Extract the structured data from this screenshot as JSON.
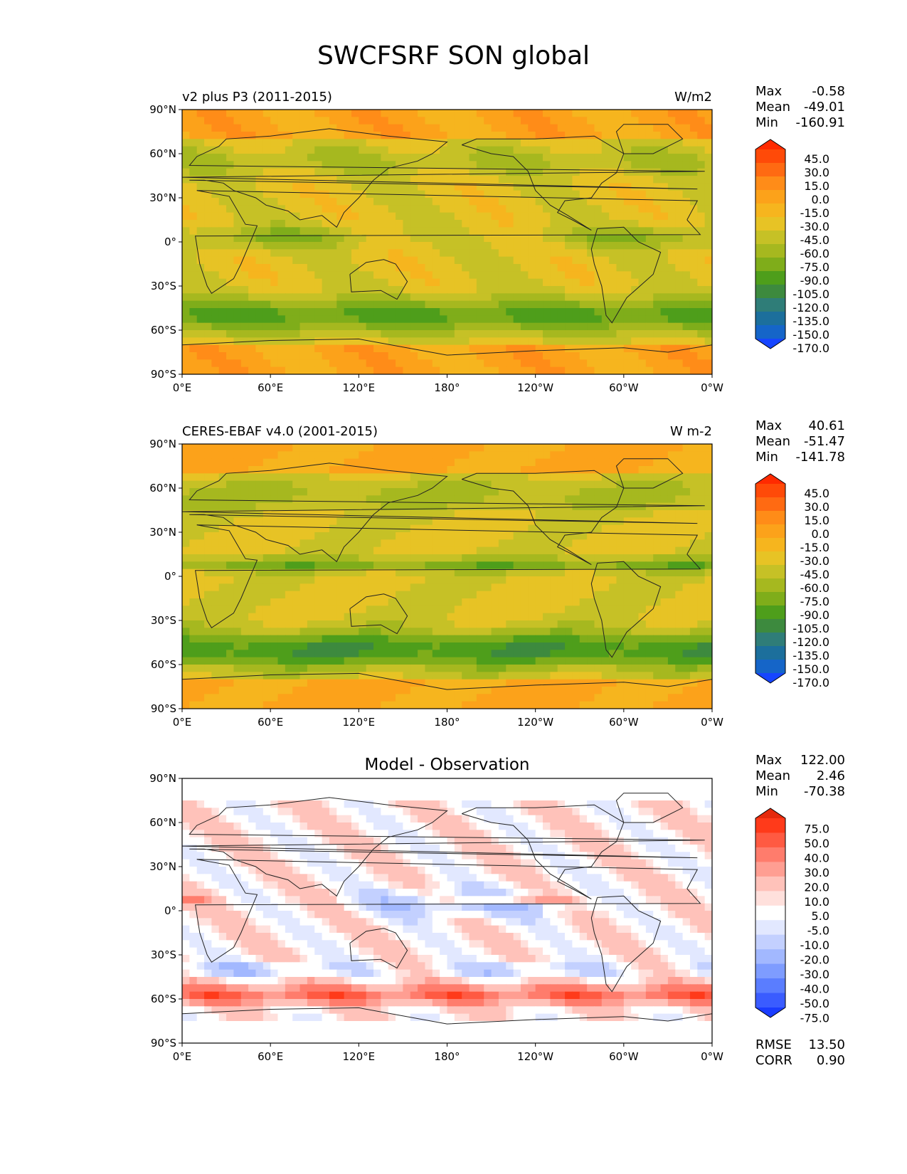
{
  "figure": {
    "title": "SWCFSRF SON global"
  },
  "axes": {
    "lat_ticks": [
      "90°N",
      "60°N",
      "30°N",
      "0°",
      "30°S",
      "60°S",
      "90°S"
    ],
    "lon_ticks": [
      "0°E",
      "60°E",
      "120°E",
      "180°",
      "120°W",
      "60°W",
      "0°W"
    ]
  },
  "panels": [
    {
      "left_title": "v2 plus P3 (2011-2015)",
      "center_title": "",
      "units": "W/m2",
      "stats": [
        {
          "label": "Max",
          "value": "-0.58"
        },
        {
          "label": "Mean",
          "value": "-49.01"
        },
        {
          "label": "Min",
          "value": "-160.91"
        }
      ],
      "colorbar": [
        "45.0",
        "30.0",
        "15.0",
        "0.0",
        "-15.0",
        "-30.0",
        "-45.0",
        "-60.0",
        "-75.0",
        "-90.0",
        "-105.0",
        "-120.0",
        "-135.0",
        "-150.0",
        "-170.0"
      ],
      "extra_stats": []
    },
    {
      "left_title": "CERES-EBAF v4.0 (2001-2015)",
      "center_title": "",
      "units": "W m-2",
      "stats": [
        {
          "label": "Max",
          "value": "40.61"
        },
        {
          "label": "Mean",
          "value": "-51.47"
        },
        {
          "label": "Min",
          "value": "-141.78"
        }
      ],
      "colorbar": [
        "45.0",
        "30.0",
        "15.0",
        "0.0",
        "-15.0",
        "-30.0",
        "-45.0",
        "-60.0",
        "-75.0",
        "-90.0",
        "-105.0",
        "-120.0",
        "-135.0",
        "-150.0",
        "-170.0"
      ],
      "extra_stats": []
    },
    {
      "left_title": "",
      "center_title": "Model - Observation",
      "units": "",
      "stats": [
        {
          "label": "Max",
          "value": "122.00"
        },
        {
          "label": "Mean",
          "value": "2.46"
        },
        {
          "label": "Min",
          "value": "-70.38"
        }
      ],
      "colorbar": [
        "75.0",
        "50.0",
        "40.0",
        "30.0",
        "20.0",
        "10.0",
        "5.0",
        "-5.0",
        "-10.0",
        "-20.0",
        "-30.0",
        "-40.0",
        "-50.0",
        "-75.0"
      ],
      "extra_stats": [
        {
          "label": "RMSE",
          "value": "13.50"
        },
        {
          "label": "CORR",
          "value": "0.90"
        }
      ]
    }
  ],
  "colors": {
    "sequential": [
      "#ff2a00",
      "#ff4a08",
      "#ff6a12",
      "#ff8c18",
      "#fca21a",
      "#f6b51e",
      "#e7c325",
      "#c6c126",
      "#a6b81f",
      "#7fad1a",
      "#4e9e1b",
      "#3d8a3e",
      "#2f7d78",
      "#1c6f9c",
      "#1565c8",
      "#1645ff"
    ],
    "diverging": [
      "#e52a0c",
      "#ff3a1a",
      "#ff5a42",
      "#ff7c6c",
      "#ff9e92",
      "#ffc2ba",
      "#ffe0dc",
      "#ffffff",
      "#e2e8ff",
      "#c3d0ff",
      "#a2b8ff",
      "#7e9cff",
      "#5a7dff",
      "#3a5cff",
      "#1a3cff"
    ]
  }
}
